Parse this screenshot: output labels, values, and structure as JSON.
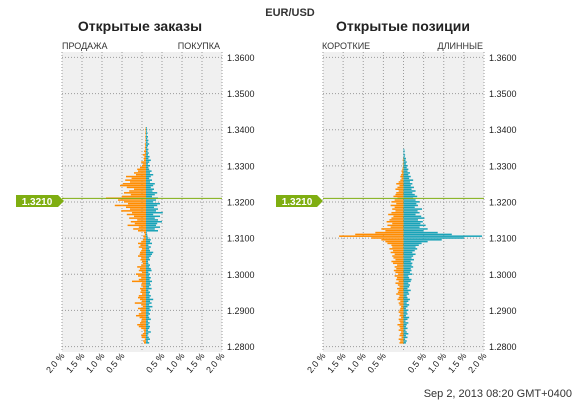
{
  "header": {
    "instrument": "EUR/USD",
    "current_price": "1.3210",
    "timestamp": "Sep 2, 2013 08:20 GMT+0400"
  },
  "colors": {
    "left_side": "#FF8C00",
    "right_side": "#1AA3B8",
    "price_marker": "#7FAE11",
    "plot_bg": "#F0F0F0",
    "grid": "#9A9A9A"
  },
  "chart_data": [
    {
      "type": "bar",
      "orientation": "horizontal-mirrored",
      "title": "Открытые заказы",
      "left_label": "ПРОДАЖА",
      "right_label": "ПОКУПКА",
      "ylim": [
        1.2785,
        1.3615
      ],
      "y_ticks": [
        "1.3600",
        "1.3500",
        "1.3400",
        "1.3300",
        "1.3200",
        "1.3100",
        "1.3000",
        "1.2900",
        "1.2800"
      ],
      "x_ticks": [
        "2.0 %",
        "1.5 %",
        "1.0 %",
        "0.5 %",
        "",
        "0.5 %",
        "1.0 %",
        "1.5 %",
        "2.0 %"
      ],
      "xlim_percent": [
        -2.0,
        2.0
      ],
      "bin_size": 0.0005,
      "price_from": 1.281,
      "series": [
        {
          "side": "left",
          "values": [
            0.05,
            0.07,
            0.03,
            0.1,
            0.12,
            0.08,
            0.05,
            0.06,
            0.12,
            0.18,
            0.22,
            0.15,
            0.12,
            0.1,
            0.16,
            0.25,
            0.18,
            0.12,
            0.14,
            0.2,
            0.08,
            0.12,
            0.28,
            0.1,
            0.15,
            0.2,
            0.18,
            0.1,
            0.14,
            0.12,
            0.15,
            0.08,
            0.12,
            0.1,
            0.35,
            0.18,
            0.12,
            0.2,
            0.25,
            0.1,
            0.18,
            0.15,
            0.22,
            0.12,
            0.08,
            0.1,
            0.14,
            0.12,
            0.2,
            0.16,
            0.15,
            0.12,
            0.1,
            0.18,
            0.14,
            0.2,
            0.12,
            0.08,
            0.05,
            0.07,
            0.03,
            0.05,
            0.2,
            0.32,
            0.18,
            0.46,
            0.28,
            0.38,
            0.22,
            0.42,
            0.3,
            0.48,
            0.35,
            0.62,
            0.4,
            0.5,
            0.78,
            0.45,
            0.55,
            0.7,
            1.0,
            0.6,
            0.38,
            0.55,
            0.42,
            0.3,
            0.48,
            0.65,
            0.58,
            0.4,
            0.52,
            0.36,
            0.5,
            0.25,
            0.3,
            0.2,
            0.22,
            0.15,
            0.1,
            0.08,
            0.12,
            0.05,
            0.06,
            0.04,
            0.08,
            0.03,
            0.05,
            0.02,
            0.03,
            0.02,
            0.03,
            0.01,
            0.02,
            0.01,
            0.02,
            0.01,
            0.02,
            0.01,
            0.02,
            0.01
          ]
        },
        {
          "side": "right",
          "values": [
            0.08,
            0.05,
            0.1,
            0.07,
            0.04,
            0.06,
            0.12,
            0.05,
            0.08,
            0.1,
            0.06,
            0.09,
            0.05,
            0.12,
            0.08,
            0.06,
            0.1,
            0.07,
            0.12,
            0.09,
            0.16,
            0.08,
            0.14,
            0.1,
            0.18,
            0.09,
            0.12,
            0.08,
            0.1,
            0.06,
            0.14,
            0.08,
            0.12,
            0.1,
            0.15,
            0.09,
            0.12,
            0.08,
            0.1,
            0.06,
            0.14,
            0.12,
            0.08,
            0.1,
            0.06,
            0.05,
            0.1,
            0.08,
            0.12,
            0.15,
            0.18,
            0.1,
            0.08,
            0.12,
            0.06,
            0.15,
            0.1,
            0.12,
            0.06,
            0.04,
            0.03,
            0.02,
            0.3,
            0.22,
            0.35,
            0.25,
            0.28,
            0.4,
            0.3,
            0.22,
            0.35,
            0.18,
            0.42,
            0.25,
            0.3,
            0.2,
            0.28,
            0.35,
            0.18,
            0.25,
            0.3,
            0.15,
            0.22,
            0.28,
            0.16,
            0.2,
            0.12,
            0.18,
            0.22,
            0.1,
            0.15,
            0.08,
            0.12,
            0.18,
            0.1,
            0.14,
            0.08,
            0.06,
            0.1,
            0.05,
            0.08,
            0.12,
            0.06,
            0.09,
            0.05,
            0.07,
            0.04,
            0.06,
            0.03,
            0.05,
            0.08,
            0.04,
            0.06,
            0.03,
            0.05,
            0.02,
            0.04,
            0.02,
            0.03,
            0.02
          ]
        }
      ]
    },
    {
      "type": "bar",
      "orientation": "horizontal-mirrored",
      "title": "Открытые позиции",
      "left_label": "КОРОТКИЕ",
      "right_label": "ДЛИННЫЕ",
      "ylim": [
        1.2785,
        1.3615
      ],
      "y_ticks": [
        "1.3600",
        "1.3500",
        "1.3400",
        "1.3300",
        "1.3200",
        "1.3100",
        "1.3000",
        "1.2900",
        "1.2800"
      ],
      "x_ticks": [
        "2.0 %",
        "1.5 %",
        "1.0 %",
        "0.5 %",
        "",
        "0.5 %",
        "1.0 %",
        "1.5 %",
        "2.0 %"
      ],
      "xlim_percent": [
        -2.0,
        2.0
      ],
      "bin_size": 0.0005,
      "price_from": 1.281,
      "series": [
        {
          "side": "left",
          "values": [
            0.1,
            0.08,
            0.12,
            0.05,
            0.1,
            0.08,
            0.06,
            0.12,
            0.08,
            0.1,
            0.15,
            0.08,
            0.1,
            0.12,
            0.06,
            0.1,
            0.08,
            0.12,
            0.1,
            0.08,
            0.06,
            0.1,
            0.12,
            0.08,
            0.15,
            0.12,
            0.1,
            0.18,
            0.14,
            0.12,
            0.16,
            0.1,
            0.14,
            0.2,
            0.12,
            0.18,
            0.16,
            0.22,
            0.14,
            0.2,
            0.24,
            0.18,
            0.22,
            0.16,
            0.26,
            0.3,
            0.2,
            0.25,
            0.28,
            0.22,
            0.32,
            0.26,
            0.35,
            0.28,
            0.3,
            0.4,
            0.45,
            0.55,
            0.8,
            1.6,
            1.2,
            0.7,
            0.45,
            0.55,
            0.32,
            0.4,
            0.28,
            0.42,
            0.35,
            0.3,
            0.25,
            0.38,
            0.3,
            0.2,
            0.28,
            0.22,
            0.32,
            0.18,
            0.3,
            0.22,
            0.15,
            0.25,
            0.2,
            0.18,
            0.12,
            0.2,
            0.15,
            0.1,
            0.18,
            0.12,
            0.08,
            0.05,
            0.08,
            0.06,
            0.04,
            0.05,
            0.03,
            0.02,
            0.01,
            0.02,
            0.01,
            0.02,
            0.01,
            0.0,
            0.0,
            0.0,
            0.0,
            0.0,
            0.0,
            0.0,
            0.0,
            0.0,
            0.0,
            0.0,
            0.0,
            0.0,
            0.0,
            0.0,
            0.0,
            0.0
          ]
        },
        {
          "side": "right",
          "values": [
            0.06,
            0.08,
            0.04,
            0.1,
            0.06,
            0.12,
            0.08,
            0.05,
            0.1,
            0.06,
            0.08,
            0.12,
            0.05,
            0.1,
            0.14,
            0.06,
            0.1,
            0.08,
            0.12,
            0.06,
            0.1,
            0.14,
            0.08,
            0.12,
            0.16,
            0.1,
            0.08,
            0.14,
            0.12,
            0.18,
            0.1,
            0.14,
            0.16,
            0.12,
            0.18,
            0.2,
            0.14,
            0.12,
            0.22,
            0.16,
            0.2,
            0.18,
            0.24,
            0.2,
            0.22,
            0.18,
            0.26,
            0.2,
            0.24,
            0.3,
            0.22,
            0.28,
            0.34,
            0.3,
            0.38,
            0.45,
            0.6,
            0.95,
            1.5,
            1.95,
            1.2,
            0.85,
            0.5,
            0.6,
            0.4,
            0.55,
            0.42,
            0.48,
            0.36,
            0.52,
            0.44,
            0.3,
            0.4,
            0.35,
            0.46,
            0.28,
            0.36,
            0.32,
            0.4,
            0.3,
            0.24,
            0.34,
            0.28,
            0.22,
            0.3,
            0.2,
            0.26,
            0.18,
            0.22,
            0.16,
            0.24,
            0.14,
            0.18,
            0.12,
            0.16,
            0.1,
            0.12,
            0.08,
            0.1,
            0.06,
            0.08,
            0.05,
            0.06,
            0.03,
            0.04,
            0.02,
            0.03,
            0.02,
            0.0,
            0.0,
            0.0,
            0.0,
            0.0,
            0.0,
            0.0,
            0.0,
            0.0,
            0.0,
            0.0,
            0.0
          ]
        }
      ]
    }
  ]
}
